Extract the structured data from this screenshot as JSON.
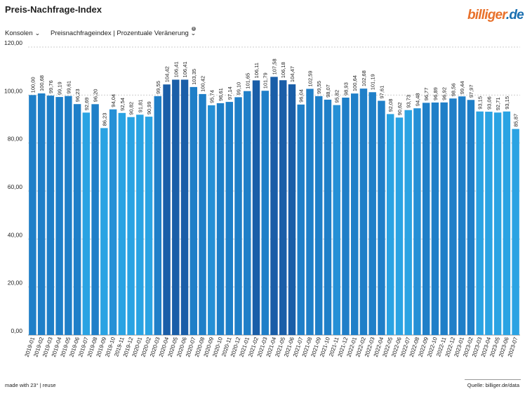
{
  "header": {
    "title": "Preis-Nachfrage-Index",
    "logo_main": "billiger",
    "logo_dot": ".",
    "logo_tld": "de"
  },
  "filters": {
    "category": "Konsolen",
    "metric": "Preisnachfrageindex | Prozentuale Veränerung",
    "info_symbol": "i"
  },
  "footer": {
    "made_with": "made with 23° | reuse",
    "source": "Quelle: billiger.de/data"
  },
  "colors": {
    "bar_light": "#2aa3e3",
    "bar_mid": "#1f7fc8",
    "bar_dark": "#1a5ea8",
    "grid": "#cccccc",
    "text": "#222222"
  },
  "chart_data": {
    "type": "bar",
    "title": "Preis-Nachfrage-Index",
    "xlabel": "",
    "ylabel": "",
    "ylim": [
      0,
      120
    ],
    "yticks": [
      "0,00",
      "20,00",
      "40,00",
      "60,00",
      "80,00",
      "100,00",
      "120,00"
    ],
    "grid": true,
    "categories": [
      "2019-01",
      "2019-02",
      "2019-03",
      "2019-04",
      "2019-05",
      "2019-06",
      "2019-07",
      "2019-08",
      "2019-09",
      "2019-10",
      "2019-11",
      "2019-12",
      "2020-01",
      "2020-02",
      "2020-03",
      "2020-04",
      "2020-05",
      "2020-06",
      "2020-07",
      "2020-08",
      "2020-09",
      "2020-10",
      "2020-11",
      "2020-12",
      "2021-01",
      "2021-02",
      "2021-03",
      "2021-04",
      "2021-05",
      "2021-06",
      "2021-07",
      "2021-08",
      "2021-09",
      "2021-10",
      "2021-11",
      "2021-12",
      "2022-01",
      "2022-02",
      "2022-03",
      "2022-04",
      "2022-05",
      "2022-06",
      "2022-07",
      "2022-08",
      "2022-09",
      "2022-10",
      "2022-11",
      "2022-12",
      "2023-01",
      "2023-02",
      "2023-03",
      "2023-04",
      "2023-05",
      "2023-06",
      "2023-07"
    ],
    "values": [
      100.0,
      100.68,
      99.76,
      99.19,
      99.61,
      96.23,
      92.69,
      96.2,
      86.23,
      94.04,
      92.54,
      90.82,
      91.81,
      90.99,
      99.55,
      104.42,
      106.41,
      106.41,
      103.35,
      100.42,
      95.74,
      96.61,
      97.14,
      99.1,
      101.65,
      106.11,
      101.79,
      107.58,
      106.18,
      104.47,
      96.04,
      102.59,
      99.55,
      98.07,
      95.82,
      98.93,
      100.64,
      102.68,
      101.19,
      97.61,
      92.08,
      90.62,
      93.73,
      94.48,
      96.77,
      96.89,
      96.92,
      98.56,
      99.44,
      97.97,
      93.15,
      93.06,
      92.71,
      93.15,
      85.87
    ],
    "value_labels": [
      "100,00",
      "100,68",
      "99,76",
      "99,19",
      "99,61",
      "96,23",
      "92,69",
      "96,20",
      "86,23",
      "94,04",
      "92,54",
      "90,82",
      "91,81",
      "90,99",
      "99,55",
      "104,42",
      "106,41",
      "106,41",
      "103,35",
      "100,42",
      "95,74",
      "96,61",
      "97,14",
      "99,10",
      "101,65",
      "106,11",
      "101,79",
      "107,58",
      "106,18",
      "104,47",
      "96,04",
      "102,59",
      "99,55",
      "98,07",
      "95,82",
      "98,93",
      "100,64",
      "102,68",
      "101,19",
      "97,61",
      "92,08",
      "90,62",
      "93,73",
      "94,48",
      "96,77",
      "96,89",
      "96,92",
      "98,56",
      "99,44",
      "97,97",
      "93,15",
      "93,06",
      "92,71",
      "93,15",
      "85,87"
    ]
  }
}
